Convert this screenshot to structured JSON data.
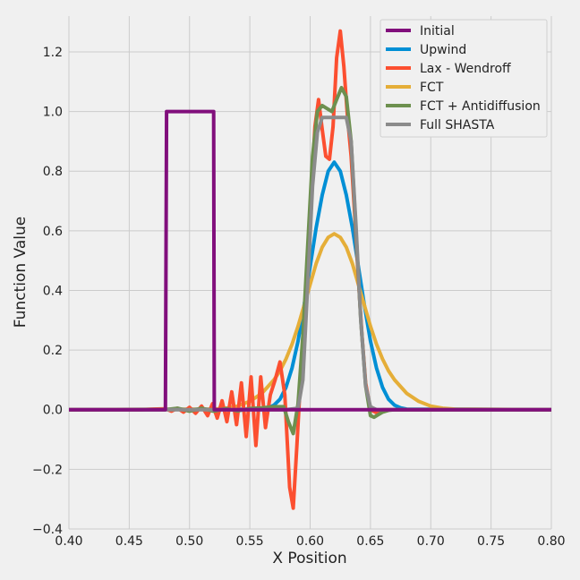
{
  "chart_data": {
    "type": "line",
    "title": "",
    "xlabel": "X Position",
    "ylabel": "Function Value",
    "xlim": [
      0.4,
      0.8
    ],
    "ylim": [
      -0.4,
      1.32
    ],
    "xticks": [
      0.4,
      0.45,
      0.5,
      0.55,
      0.6,
      0.65,
      0.7,
      0.75,
      0.8
    ],
    "xtick_labels": [
      "0.40",
      "0.45",
      "0.50",
      "0.55",
      "0.60",
      "0.65",
      "0.70",
      "0.75",
      "0.80"
    ],
    "yticks": [
      -0.4,
      -0.2,
      0.0,
      0.2,
      0.4,
      0.6,
      0.8,
      1.0,
      1.2
    ],
    "ytick_labels": [
      "−0.4",
      "−0.2",
      "0.0",
      "0.2",
      "0.4",
      "0.6",
      "0.8",
      "1.0",
      "1.2"
    ],
    "grid": true,
    "legend_position": "top-right",
    "series": [
      {
        "name": "Initial",
        "color": "#810f7c",
        "x": [
          0.4,
          0.4795,
          0.48,
          0.481,
          0.519,
          0.52,
          0.5205,
          0.8
        ],
        "y": [
          0.0,
          0.0,
          0.0,
          1.0,
          1.0,
          1.0,
          0.0,
          0.0
        ]
      },
      {
        "name": "Upwind",
        "color": "#008fd5",
        "x": [
          0.4,
          0.56,
          0.565,
          0.57,
          0.575,
          0.58,
          0.585,
          0.59,
          0.595,
          0.6,
          0.605,
          0.61,
          0.615,
          0.62,
          0.625,
          0.63,
          0.635,
          0.64,
          0.645,
          0.65,
          0.655,
          0.66,
          0.665,
          0.67,
          0.675,
          0.68,
          0.8
        ],
        "y": [
          0.0,
          0.002,
          0.006,
          0.015,
          0.035,
          0.075,
          0.14,
          0.23,
          0.35,
          0.48,
          0.61,
          0.72,
          0.8,
          0.83,
          0.8,
          0.72,
          0.61,
          0.48,
          0.35,
          0.23,
          0.14,
          0.075,
          0.035,
          0.015,
          0.006,
          0.002,
          0.0
        ]
      },
      {
        "name": "Lax - Wendroff",
        "color": "#fc4f30",
        "x": [
          0.4,
          0.46,
          0.47,
          0.48,
          0.485,
          0.49,
          0.495,
          0.5,
          0.505,
          0.51,
          0.515,
          0.519,
          0.523,
          0.527,
          0.531,
          0.535,
          0.539,
          0.543,
          0.547,
          0.551,
          0.555,
          0.559,
          0.563,
          0.567,
          0.571,
          0.575,
          0.579,
          0.583,
          0.586,
          0.589,
          0.592,
          0.595,
          0.598,
          0.601,
          0.604,
          0.607,
          0.61,
          0.613,
          0.616,
          0.619,
          0.622,
          0.625,
          0.628,
          0.631,
          0.634,
          0.637,
          0.64,
          0.643,
          0.646,
          0.65,
          0.655,
          0.66,
          0.8
        ],
        "y": [
          0.0,
          0.0,
          0.002,
          0.003,
          -0.005,
          0.005,
          -0.008,
          0.008,
          -0.012,
          0.012,
          -0.02,
          0.02,
          -0.028,
          0.03,
          -0.04,
          0.06,
          -0.05,
          0.09,
          -0.09,
          0.11,
          -0.12,
          0.11,
          -0.06,
          0.05,
          0.1,
          0.16,
          0.05,
          -0.26,
          -0.33,
          -0.12,
          0.1,
          0.25,
          0.45,
          0.72,
          0.95,
          1.04,
          0.94,
          0.85,
          0.84,
          0.95,
          1.18,
          1.27,
          1.15,
          0.98,
          0.85,
          0.65,
          0.44,
          0.25,
          0.09,
          0.0,
          -0.01,
          0.0,
          0.0
        ]
      },
      {
        "name": "FCT",
        "color": "#e5ae38",
        "x": [
          0.4,
          0.52,
          0.53,
          0.54,
          0.55,
          0.56,
          0.57,
          0.575,
          0.58,
          0.585,
          0.59,
          0.595,
          0.6,
          0.605,
          0.61,
          0.615,
          0.62,
          0.625,
          0.63,
          0.635,
          0.64,
          0.645,
          0.65,
          0.655,
          0.66,
          0.665,
          0.67,
          0.68,
          0.69,
          0.7,
          0.71,
          0.72,
          0.8
        ],
        "y": [
          0.0,
          0.002,
          0.005,
          0.012,
          0.028,
          0.055,
          0.1,
          0.13,
          0.17,
          0.22,
          0.28,
          0.35,
          0.42,
          0.49,
          0.545,
          0.578,
          0.59,
          0.578,
          0.545,
          0.49,
          0.42,
          0.35,
          0.28,
          0.22,
          0.17,
          0.13,
          0.1,
          0.055,
          0.028,
          0.012,
          0.005,
          0.002,
          0.0
        ]
      },
      {
        "name": "FCT + Antidiffusion",
        "color": "#6d904f",
        "x": [
          0.4,
          0.48,
          0.49,
          0.5,
          0.51,
          0.52,
          0.53,
          0.54,
          0.55,
          0.56,
          0.57,
          0.578,
          0.582,
          0.586,
          0.59,
          0.594,
          0.598,
          0.602,
          0.606,
          0.61,
          0.614,
          0.618,
          0.622,
          0.626,
          0.63,
          0.634,
          0.638,
          0.642,
          0.646,
          0.65,
          0.653,
          0.656,
          0.66,
          0.665,
          0.67,
          0.8
        ],
        "y": [
          0.0,
          0.0,
          0.005,
          -0.005,
          0.005,
          -0.005,
          0.004,
          -0.004,
          0.004,
          0.006,
          0.01,
          0.01,
          -0.04,
          -0.08,
          0.02,
          0.25,
          0.55,
          0.85,
          1.0,
          1.02,
          1.01,
          1.0,
          1.04,
          1.08,
          1.05,
          0.9,
          0.6,
          0.3,
          0.08,
          -0.02,
          -0.025,
          -0.018,
          -0.008,
          -0.002,
          0.0,
          0.0
        ]
      },
      {
        "name": "Full SHASTA",
        "color": "#8b8b8b",
        "x": [
          0.4,
          0.58,
          0.59,
          0.594,
          0.598,
          0.602,
          0.606,
          0.61,
          0.615,
          0.62,
          0.625,
          0.63,
          0.634,
          0.638,
          0.642,
          0.646,
          0.65,
          0.655,
          0.66,
          0.8
        ],
        "y": [
          0.0,
          0.0,
          0.005,
          0.1,
          0.42,
          0.75,
          0.93,
          0.98,
          0.98,
          0.98,
          0.98,
          0.98,
          0.9,
          0.62,
          0.3,
          0.08,
          0.01,
          0.0,
          0.0,
          0.0
        ]
      }
    ]
  }
}
